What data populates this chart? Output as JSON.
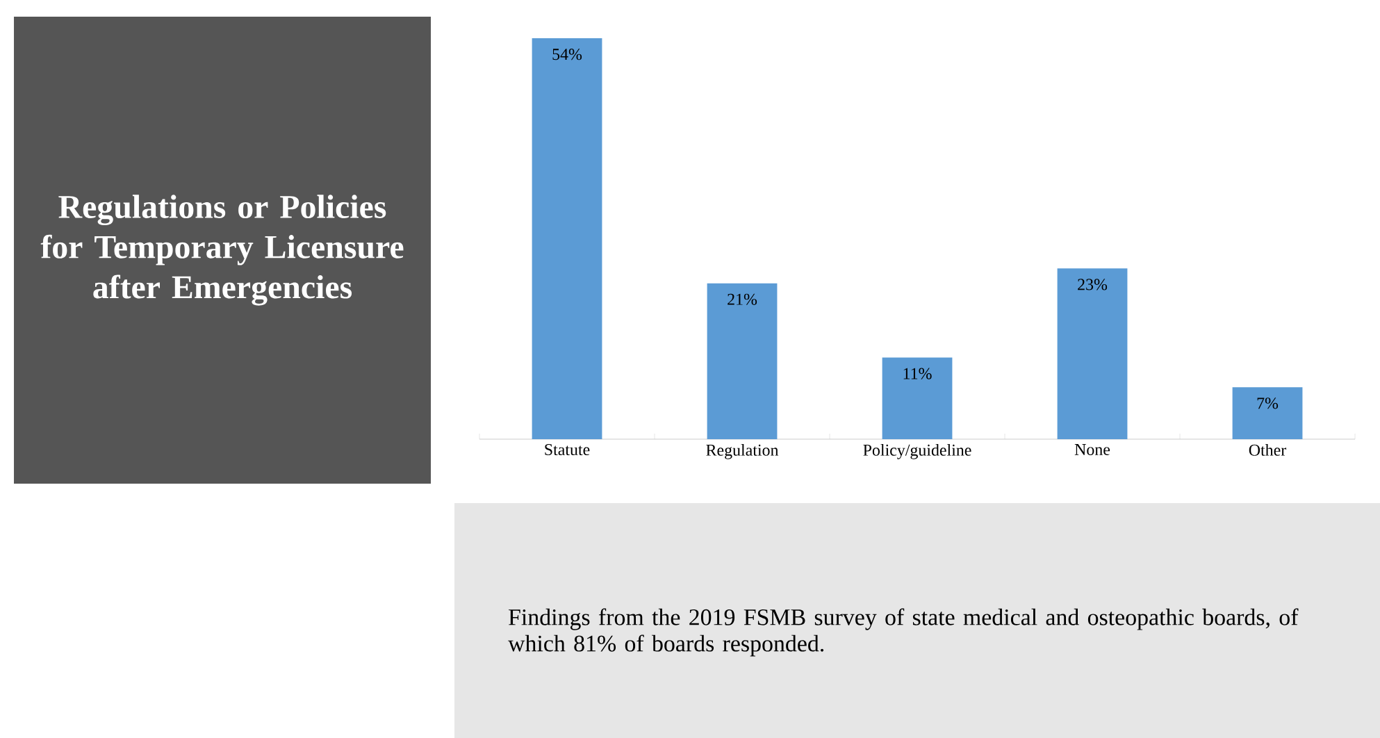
{
  "chart_data": {
    "type": "bar",
    "title": "Regulations or Policies for Temporary Licensure after Emergencies",
    "categories": [
      "Statute",
      "Regulation",
      "Policy/guideline",
      "None",
      "Other"
    ],
    "values": [
      54,
      21,
      11,
      23,
      7
    ],
    "value_labels": [
      "54%",
      "21%",
      "11%",
      "23%",
      "7%"
    ],
    "color": "#5b9bd5",
    "annotations": [
      "Findings from the 2019 FSMB survey of state medical and osteopathic boards, of which 81% of boards responded."
    ]
  }
}
